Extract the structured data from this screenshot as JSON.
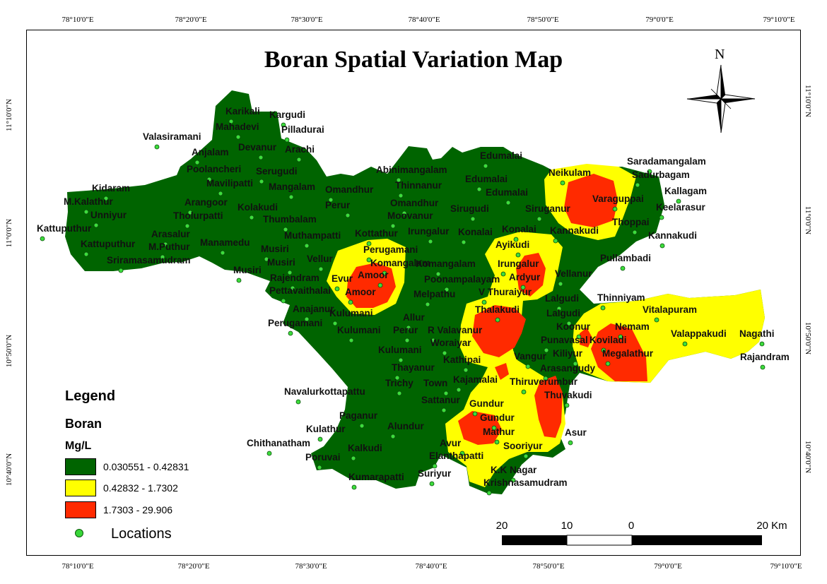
{
  "title": "Boran Spatial Variation Map",
  "north_label": "N",
  "graticule": {
    "top": [
      "78°10'0\"E",
      "78°20'0\"E",
      "78°30'0\"E",
      "78°40'0\"E",
      "78°50'0\"E",
      "79°0'0\"E",
      "79°10'0\"E"
    ],
    "bottom": [
      "78°10'0\"E",
      "78°20'0\"E",
      "78°30'0\"E",
      "78°40'0\"E",
      "78°50'0\"E",
      "79°0'0\"E",
      "79°10'0\"E"
    ],
    "left": [
      "11°10'0\"N",
      "11°0'0\"N",
      "10°50'0\"N",
      "10°40'0\"N"
    ],
    "right": [
      "11°10'0\"N",
      "11°0'0\"N",
      "10°50'0\"N",
      "10°40'0\"N"
    ]
  },
  "legend": {
    "title": "Legend",
    "subtitle": "Boran",
    "unit": "Mg/L",
    "classes": [
      {
        "label": "0.030551 - 0.42831",
        "color": "#006400"
      },
      {
        "label": "0.42832 - 1.7302",
        "color": "#ffff00"
      },
      {
        "label": "1.7303 - 29.906",
        "color": "#ff2a00"
      }
    ],
    "locations_label": "Locations"
  },
  "scale_bar": {
    "labels": [
      "20",
      "10",
      "0",
      "20 Km"
    ]
  },
  "places": {
    "karikali": "Karikali",
    "kargudi": "Kargudi",
    "mahadevi": "Mahadevi",
    "pilladurai": "Pilladurai",
    "valasiramani": "Valasiramani",
    "devanur": "Devanur",
    "anjalam": "Anjalam",
    "arachi": "Arachi",
    "poolancheri": "Poolancheri",
    "serugudi": "Serugudi",
    "mavilipatti": "Mavilipatti",
    "mangalam": "Mangalam",
    "omandhur1": "Omandhur",
    "kidaram": "Kidaram",
    "mkalathur": "M.Kalathur",
    "arangoor": "Arangoor",
    "kolakudi": "Kolakudi",
    "perur1": "Perur",
    "unniyur": "Unniyur",
    "tholurpatti": "Tholurpatti",
    "thumbalam": "Thumbalam",
    "kattuputhur1": "Kattuputhur",
    "arasalur": "Arasalur",
    "muthampatti": "Muthampatti",
    "kattuputhur2": "Kattuputhur",
    "mputhur": "M.Puthur",
    "manamedu": "Manamedu",
    "musiri1": "Musiri",
    "sriramasamudram": "Sriramasamudram",
    "musiri2": "Musiri",
    "musiri3": "Musiri",
    "vellur": "Vellur",
    "rajendram1": "Rajendram",
    "evur": "Evur",
    "pettavaithalai": "Pettavaithalai",
    "amoor1": "Amoor",
    "amoor2": "Amoor",
    "anajanur": "Anajanur",
    "perugamani1": "Perugamani",
    "perugamani2": "Perugamani",
    "komangalam1": "Komangalam",
    "komangalam2": "Komangalam",
    "kulumani1": "Kulumani",
    "kulumani2": "Kulumani",
    "kulumani3": "Kulumani",
    "allur": "Allur",
    "perur2": "Perur",
    "abinimangalam": "Abinimangalam",
    "edumalai1": "Edumalai",
    "edumalai2": "Edumalai",
    "edumalai3": "Edumalai",
    "thinnanur": "Thinnanur",
    "omandhur2": "Omandhur",
    "sirugudi": "Sirugudi",
    "moovanur": "Moovanur",
    "kottathur": "Kottathur",
    "irungalur1": "Irungalur",
    "konalai1": "Konalai",
    "konalai2": "Konalai",
    "ayikudi": "Ayikudi",
    "irungalur2": "Irungalur",
    "ardyur": "Ardyur",
    "poonampalayam": "Poonampalayam",
    "vthuraiyur": "V Thuraiyur",
    "melpathu": "Melpathu",
    "thalakudi": "Thalakudi",
    "rvalavanur": "R Valavanur",
    "woraiyar": "Woraiyar",
    "kathipai": "Kathipai",
    "thayanur": "Thayanur",
    "trichy": "Trichy",
    "town": "Town",
    "kajamalai": "Kajamalai",
    "navalurkottapattu": "Navalurkottapattu",
    "sattanur": "Sattanur",
    "gundur1": "Gundur",
    "gundur2": "Gundur",
    "paganur": "Paganur",
    "alundur": "Alundur",
    "kulathur": "Kulathur",
    "chithanatham": "Chithanatham",
    "kalkudi": "Kalkudi",
    "poruvai": "Poruvai",
    "avur": "Avur",
    "elanthapatti": "Elanthapatti",
    "mathur": "Mathur",
    "sooriyur": "Sooriyur",
    "kumarapatti": "Kumarapatti",
    "suriyur": "Suriyur",
    "kknagar": "K.K Nagar",
    "krishnasamudram": "Krishnasamudram",
    "neikulam": "Neikulam",
    "saradamangalam": "Saradamangalam",
    "sadurbagam": "Sadurbagam",
    "kallagam": "Kallagam",
    "varaguppai": "Varaguppai",
    "keelarasur": "Keelarasur",
    "siruganur": "Siruganur",
    "thoppai": "Thoppai",
    "kannakudi1": "Kannakudi",
    "kannakudi2": "Kannakudi",
    "pullambadi": "Pullambadi",
    "vellanur": "Vellanur",
    "lalgudi1": "Lalgudi",
    "lalgudi2": "Lalgudi",
    "thinniyam": "Thinniyam",
    "vitalapuram": "Vitalapuram",
    "koonur": "Koonur",
    "nemam": "Nemam",
    "valappakudi": "Valappakudi",
    "nagathi": "Nagathi",
    "punavasal": "Punavasal",
    "koviladi": "Koviladi",
    "kiliyur": "Kiliyur",
    "megalathur": "Megalathur",
    "vangur": "Vangur",
    "rajandram2": "Rajandram",
    "arasangudy": "Arasangudy",
    "thiruverumbur": "Thiruverumbur",
    "thuvakudi": "Thuvakudi",
    "asur": "Asur"
  }
}
